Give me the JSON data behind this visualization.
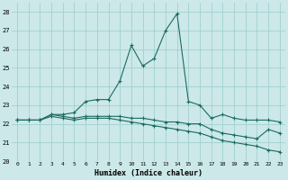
{
  "xlabel": "Humidex (Indice chaleur)",
  "bg_color": "#cce8e8",
  "grid_color": "#99cccc",
  "line_color": "#1a6b60",
  "xlim": [
    -0.5,
    23.5
  ],
  "ylim": [
    20,
    28.5
  ],
  "yticks": [
    20,
    21,
    22,
    23,
    24,
    25,
    26,
    27,
    28
  ],
  "xtick_labels": [
    "0",
    "1",
    "2",
    "3",
    "4",
    "5",
    "6",
    "7",
    "8",
    "9",
    "10",
    "11",
    "12",
    "13",
    "14",
    "15",
    "16",
    "17",
    "18",
    "19",
    "20",
    "21",
    "22",
    "23"
  ],
  "series1": [
    22.2,
    22.2,
    22.2,
    22.5,
    22.5,
    22.6,
    23.2,
    23.3,
    23.3,
    24.3,
    26.2,
    25.1,
    25.5,
    27.0,
    27.9,
    23.2,
    23.0,
    22.3,
    22.5,
    22.3,
    22.2,
    22.2,
    22.2,
    22.1
  ],
  "series2": [
    22.2,
    22.2,
    22.2,
    22.5,
    22.4,
    22.3,
    22.4,
    22.4,
    22.4,
    22.4,
    22.3,
    22.3,
    22.2,
    22.1,
    22.1,
    22.0,
    22.0,
    21.7,
    21.5,
    21.4,
    21.3,
    21.2,
    21.7,
    21.5
  ],
  "series3": [
    22.2,
    22.2,
    22.2,
    22.4,
    22.3,
    22.2,
    22.3,
    22.3,
    22.3,
    22.2,
    22.1,
    22.0,
    21.9,
    21.8,
    21.7,
    21.6,
    21.5,
    21.3,
    21.1,
    21.0,
    20.9,
    20.8,
    20.6,
    20.5
  ]
}
